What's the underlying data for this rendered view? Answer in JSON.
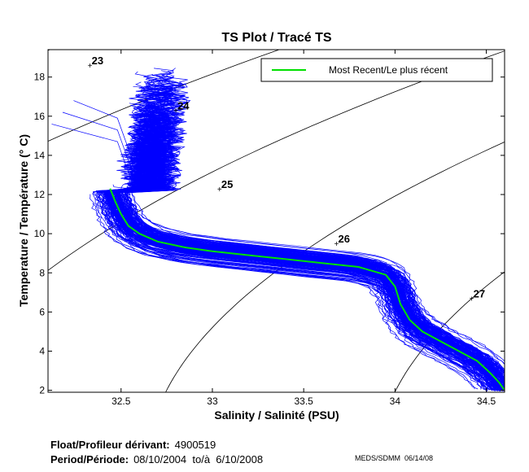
{
  "chart_data": {
    "type": "line",
    "title": "TS Plot / Tracé TS",
    "xlabel": "Salinity / Salinité (PSU)",
    "ylabel": "Temperature / Température (° C)",
    "xlim": [
      32.1,
      34.6
    ],
    "ylim": [
      1.9,
      19.4
    ],
    "x_ticks": [
      32.5,
      33,
      33.5,
      34,
      34.5
    ],
    "x_tick_labels": [
      "32.5",
      "33",
      "33.5",
      "34",
      "34.5"
    ],
    "y_ticks": [
      2,
      4,
      6,
      8,
      10,
      12,
      14,
      16,
      18
    ],
    "y_tick_labels": [
      "2",
      "4",
      "6",
      "8",
      "10",
      "12",
      "14",
      "16",
      "18"
    ],
    "grid": false,
    "legend": {
      "position": "top-right",
      "entries": [
        {
          "label": "Most Recent/Le plus récent",
          "color": "#00e000"
        }
      ]
    },
    "density_contours": [
      {
        "label": "23",
        "sigma": 23,
        "label_x": 32.33,
        "label_y": 18.6
      },
      {
        "label": "24",
        "sigma": 24,
        "label_x": 32.8,
        "label_y": 16.3
      },
      {
        "label": "25",
        "sigma": 25,
        "label_x": 33.04,
        "label_y": 12.3
      },
      {
        "label": "26",
        "sigma": 26,
        "label_x": 33.68,
        "label_y": 9.5
      },
      {
        "label": "27",
        "sigma": 27,
        "label_x": 34.42,
        "label_y": 6.7
      }
    ],
    "contour_color": "#000000",
    "profile_color": "#0000ff",
    "profile_count": 170,
    "series": [
      {
        "name": "Most Recent/Le plus récent",
        "color": "#00e000",
        "points": [
          [
            32.44,
            12.3
          ],
          [
            32.47,
            11.6
          ],
          [
            32.5,
            11.0
          ],
          [
            32.54,
            10.4
          ],
          [
            32.6,
            10.0
          ],
          [
            32.7,
            9.6
          ],
          [
            32.85,
            9.3
          ],
          [
            33.0,
            9.1
          ],
          [
            33.2,
            8.9
          ],
          [
            33.4,
            8.7
          ],
          [
            33.6,
            8.5
          ],
          [
            33.8,
            8.3
          ],
          [
            33.95,
            7.9
          ],
          [
            34.0,
            7.3
          ],
          [
            34.03,
            6.4
          ],
          [
            34.08,
            5.6
          ],
          [
            34.15,
            5.0
          ],
          [
            34.25,
            4.5
          ],
          [
            34.35,
            4.0
          ],
          [
            34.45,
            3.5
          ],
          [
            34.52,
            2.9
          ],
          [
            34.57,
            2.4
          ],
          [
            34.6,
            2.0
          ]
        ]
      }
    ]
  },
  "footer": {
    "float_label": "Float/Profileur dérivant:",
    "float_value": "4900519",
    "period_label": "Period/Période:",
    "period_value": "08/10/2004  to/à  6/10/2008",
    "credit": "MEDS/SDMM  06/14/08"
  }
}
